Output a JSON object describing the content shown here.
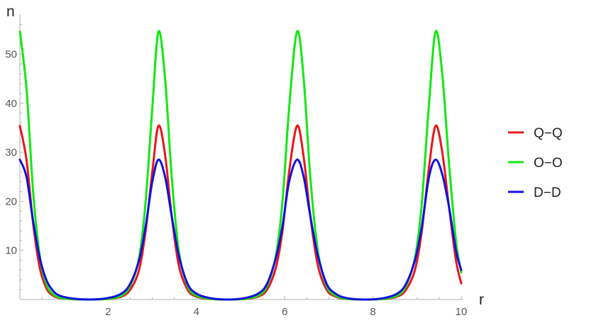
{
  "chart_data": {
    "type": "line",
    "title": "",
    "xlabel": "r",
    "ylabel": "n",
    "xlim": [
      0,
      10
    ],
    "ylim": [
      0,
      57
    ],
    "x_ticks": [
      2,
      4,
      6,
      8,
      10
    ],
    "x_tick_labels": [
      "2",
      "4",
      "6",
      "8",
      "10"
    ],
    "y_ticks": [
      10,
      20,
      30,
      40,
      50
    ],
    "y_tick_labels": [
      "10",
      "20",
      "30",
      "40",
      "50"
    ],
    "grid": false,
    "legend_position": "right",
    "series": [
      {
        "name": "Q−Q",
        "color": "#e8171c",
        "x": [
          0,
          0.15,
          0.3,
          0.45,
          0.6,
          0.75,
          0.9,
          1.2,
          1.57,
          2.0,
          2.3,
          2.5,
          2.7,
          2.85,
          3.0,
          3.14,
          3.29,
          3.44,
          3.6,
          3.8,
          4.0,
          4.3,
          4.71,
          5.1,
          5.4,
          5.6,
          5.8,
          5.95,
          6.1,
          6.28,
          6.43,
          6.58,
          6.75,
          6.95,
          7.15,
          7.4,
          7.85,
          8.25,
          8.55,
          8.75,
          8.95,
          9.1,
          9.27,
          9.42,
          9.57,
          9.72,
          9.88,
          10.0
        ],
        "y": [
          35.4,
          28.5,
          15.5,
          6.5,
          2.3,
          0.8,
          0.3,
          0.05,
          0.0,
          0.1,
          0.6,
          2.0,
          6.0,
          14.0,
          26.0,
          35.4,
          29.5,
          17.0,
          7.0,
          2.0,
          0.6,
          0.1,
          0.0,
          0.1,
          0.6,
          2.0,
          6.5,
          14.0,
          26.0,
          35.4,
          29.0,
          17.0,
          7.0,
          2.0,
          0.6,
          0.1,
          0.0,
          0.1,
          0.6,
          2.0,
          6.0,
          13.5,
          27.0,
          35.4,
          30.0,
          19.0,
          8.0,
          3.3
        ]
      },
      {
        "name": "O−O",
        "color": "#12e812",
        "x": [
          0,
          0.15,
          0.3,
          0.45,
          0.6,
          0.75,
          0.9,
          1.2,
          1.57,
          2.0,
          2.3,
          2.5,
          2.7,
          2.85,
          3.0,
          3.14,
          3.29,
          3.44,
          3.6,
          3.8,
          4.0,
          4.3,
          4.71,
          5.1,
          5.4,
          5.6,
          5.8,
          5.95,
          6.1,
          6.28,
          6.43,
          6.58,
          6.75,
          6.95,
          7.15,
          7.4,
          7.85,
          8.25,
          8.55,
          8.75,
          8.95,
          9.1,
          9.27,
          9.42,
          9.57,
          9.72,
          9.88,
          10.0
        ],
        "y": [
          54.6,
          43.0,
          22.0,
          9.0,
          3.2,
          1.1,
          0.4,
          0.05,
          0.0,
          0.15,
          0.8,
          2.8,
          8.5,
          20.0,
          39.0,
          54.6,
          45.0,
          25.0,
          10.0,
          2.8,
          0.8,
          0.15,
          0.0,
          0.15,
          0.8,
          2.8,
          9.0,
          20.0,
          39.0,
          54.6,
          45.0,
          25.0,
          10.0,
          2.8,
          0.8,
          0.15,
          0.0,
          0.15,
          0.8,
          2.8,
          8.5,
          19.0,
          40.0,
          54.6,
          46.0,
          28.0,
          12.0,
          5.5
        ]
      },
      {
        "name": "D−D",
        "color": "#1010e0",
        "x": [
          0,
          0.15,
          0.3,
          0.45,
          0.6,
          0.75,
          0.9,
          1.2,
          1.57,
          2.0,
          2.3,
          2.5,
          2.7,
          2.85,
          3.0,
          3.14,
          3.29,
          3.44,
          3.6,
          3.8,
          4.0,
          4.3,
          4.71,
          5.1,
          5.4,
          5.6,
          5.8,
          5.95,
          6.1,
          6.28,
          6.43,
          6.58,
          6.75,
          6.95,
          7.15,
          7.4,
          7.85,
          8.25,
          8.55,
          8.75,
          8.95,
          9.1,
          9.27,
          9.42,
          9.57,
          9.72,
          9.88,
          10.0
        ],
        "y": [
          28.5,
          25.0,
          16.0,
          8.5,
          4.0,
          1.8,
          0.8,
          0.2,
          0.0,
          0.3,
          1.2,
          3.2,
          8.0,
          15.0,
          24.0,
          28.5,
          25.0,
          17.0,
          9.0,
          3.2,
          1.2,
          0.3,
          0.0,
          0.3,
          1.2,
          3.2,
          8.5,
          15.0,
          24.0,
          28.5,
          25.0,
          17.0,
          9.0,
          3.2,
          1.2,
          0.3,
          0.0,
          0.3,
          1.2,
          3.2,
          8.0,
          14.5,
          25.0,
          28.5,
          25.5,
          19.0,
          10.0,
          6.0
        ]
      }
    ]
  }
}
